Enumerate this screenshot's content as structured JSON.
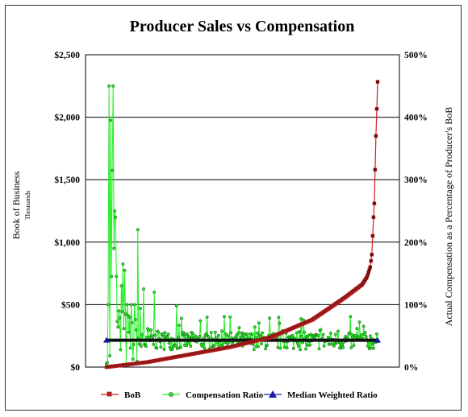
{
  "chart_data": {
    "type": "line",
    "title": "Producer Sales vs Compensation",
    "ylabel": "Book of Business",
    "ylabel_unit": "Thousands",
    "y2label": "Actual Compensation as a Percentage of Producer's BoB",
    "ylim": [
      0,
      2500
    ],
    "y2lim": [
      0,
      500
    ],
    "y_ticks": [
      "$0",
      "$500",
      "$1,000",
      "$1,500",
      "$2,000",
      "$2,500"
    ],
    "y2_ticks": [
      "0%",
      "100%",
      "200%",
      "300%",
      "400%",
      "500%"
    ],
    "grid": true,
    "legend_position": "bottom",
    "colors": {
      "bob": "#cc2222",
      "comp": "#22ee22",
      "median": "#1a1aaa"
    },
    "n_producers": 330,
    "series": [
      {
        "name": "BoB",
        "axis": "left",
        "description_points": [
          [
            0,
            0
          ],
          [
            50,
            40
          ],
          [
            100,
            100
          ],
          [
            150,
            160
          ],
          [
            200,
            240
          ],
          [
            250,
            380
          ],
          [
            290,
            560
          ],
          [
            310,
            660
          ],
          [
            316,
            720
          ],
          [
            320,
            800
          ],
          [
            322,
            900
          ],
          [
            324,
            1200
          ],
          [
            325,
            1310
          ],
          [
            327,
            1850
          ],
          [
            330,
            2500
          ]
        ]
      },
      {
        "name": "Compensation Ratio",
        "axis": "right",
        "peaks": [
          [
            2,
            100
          ],
          [
            3,
            450
          ],
          [
            5,
            395
          ],
          [
            6,
            145
          ],
          [
            7,
            315
          ],
          [
            8,
            450
          ],
          [
            9,
            190
          ],
          [
            10,
            250
          ],
          [
            11,
            240
          ],
          [
            12,
            145
          ],
          [
            15,
            90
          ],
          [
            18,
            130
          ],
          [
            20,
            165
          ],
          [
            22,
            155
          ],
          [
            25,
            100
          ],
          [
            30,
            100
          ],
          [
            34,
            100
          ],
          [
            38,
            220
          ],
          [
            45,
            125
          ],
          [
            58,
            120
          ],
          [
            85,
            98
          ],
          [
            150,
            80
          ],
          [
            210,
            70
          ],
          [
            260,
            60
          ]
        ],
        "baseline": 42
      },
      {
        "name": "Median Weighted Ratio",
        "axis": "right",
        "value": 43
      }
    ]
  }
}
